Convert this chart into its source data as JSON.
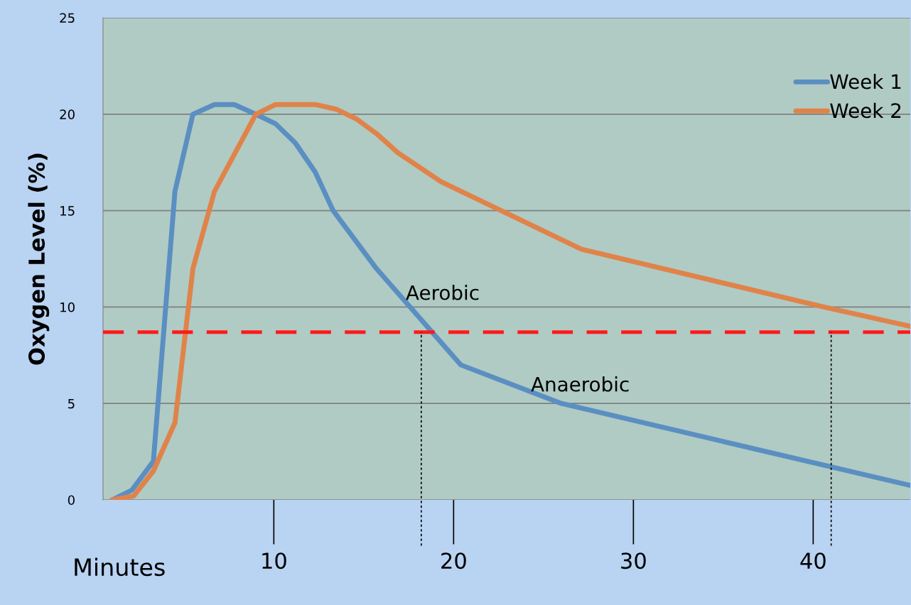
{
  "chart_data": {
    "type": "line",
    "ylabel": "Oxygen Level (%)",
    "xlabel": "Minutes",
    "xlim": [
      0.5,
      45.4
    ],
    "xticks": [
      10,
      20,
      30,
      40
    ],
    "ylim": [
      0,
      25
    ],
    "yticks": [
      0,
      5,
      10,
      15,
      20,
      25
    ],
    "grid": "y",
    "legend": "top right",
    "line_style": "solid",
    "series": [
      {
        "name": "Week 1",
        "color": "#5b8fc2",
        "x": [
          1,
          2.1,
          3.3,
          4.5,
          5.5,
          6.7,
          7.8,
          9,
          10.1,
          11.2,
          12.3,
          13.3,
          15.7,
          20.4,
          26,
          45.4
        ],
        "values": [
          0,
          0.5,
          2,
          16,
          20,
          20.5,
          20.5,
          20,
          19.5,
          18.5,
          17,
          15,
          12,
          7,
          5,
          0.75
        ]
      },
      {
        "name": "Week 2",
        "color": "#e0834a",
        "x": [
          1,
          2.2,
          3.3,
          4.5,
          5.5,
          6.7,
          9,
          10.1,
          12.3,
          13.5,
          14.6,
          15.7,
          16.9,
          19.3,
          27.1,
          40.6,
          45.4
        ],
        "values": [
          0,
          0.2,
          1.5,
          4,
          12,
          16,
          20,
          20.5,
          20.5,
          20.25,
          19.75,
          19,
          18,
          16.5,
          13,
          10,
          9
        ]
      }
    ],
    "ref_lines": [
      {
        "axis": "y",
        "value": 8.7,
        "color": "#ff1a1a",
        "line_style": "dashed"
      },
      {
        "axis": "x",
        "value": 18.2,
        "color": "#000000",
        "line_style": "dotted"
      },
      {
        "axis": "x",
        "value": 41,
        "color": "#000000",
        "line_style": "dotted"
      }
    ],
    "annotations": [
      "Aerobic",
      "Anaerobic"
    ]
  }
}
